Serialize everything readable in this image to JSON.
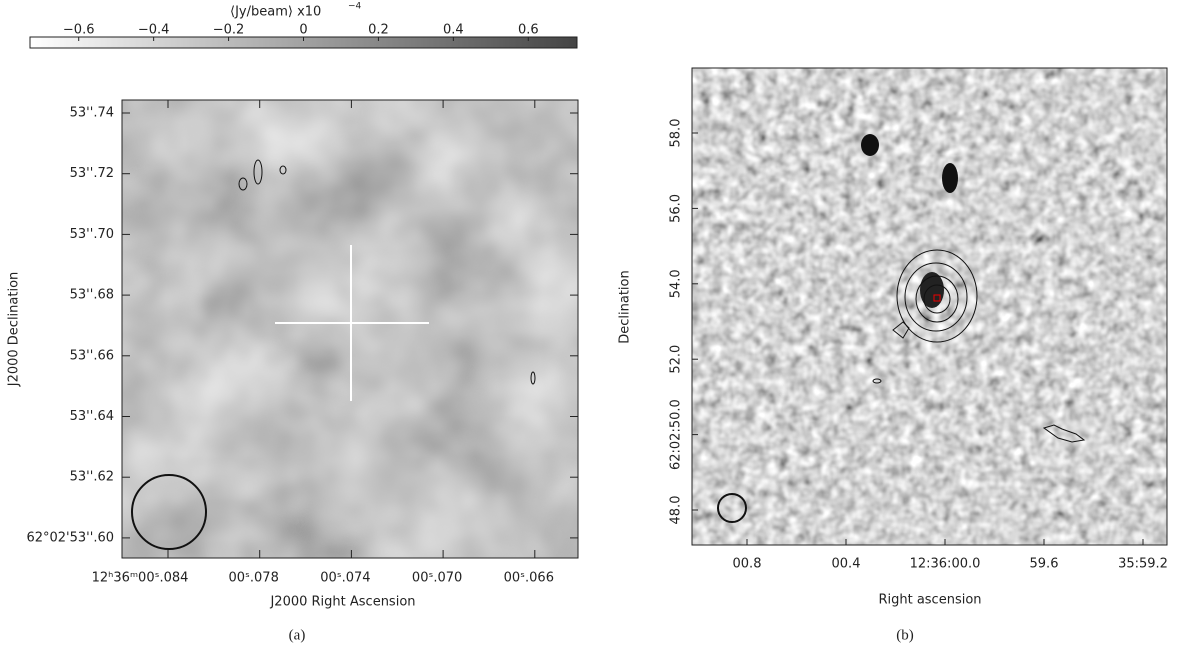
{
  "panel_a": {
    "colorbar": {
      "label": "⟨Jy/beam⟩  x10",
      "exponent": "−4",
      "lim": [
        -0.73,
        0.73
      ],
      "ticks": [
        {
          "value": -0.6,
          "label": "−0.6"
        },
        {
          "value": -0.4,
          "label": "−0.4"
        },
        {
          "value": -0.2,
          "label": "−0.2"
        },
        0,
        0.2,
        0.4,
        0.6
      ]
    },
    "yticks": [
      "53''.74",
      "53''.72",
      "53''.70",
      "53''.68",
      "53''.66",
      "53''.64",
      "53''.62",
      "62°02'53''.60"
    ],
    "xticks": [
      "12ʰ36ᵐ00ˢ.084",
      "00ˢ.078",
      "00ˢ.074",
      "00ˢ.070",
      "00ˢ.066"
    ],
    "ylabel": "J2000 Declination",
    "xlabel": "J2000 Right Ascension",
    "caption": "(a)"
  },
  "panel_b": {
    "yticks": [
      "58.0",
      "56.0",
      "54.0",
      "52.0",
      "62:02:50.0",
      "48.0"
    ],
    "xticks": [
      "00.8",
      "00.4",
      "12:36:00.0",
      "59.6",
      "35:59.2"
    ],
    "ylabel": "Declination",
    "xlabel": "Right ascension",
    "caption": "(b)"
  }
}
